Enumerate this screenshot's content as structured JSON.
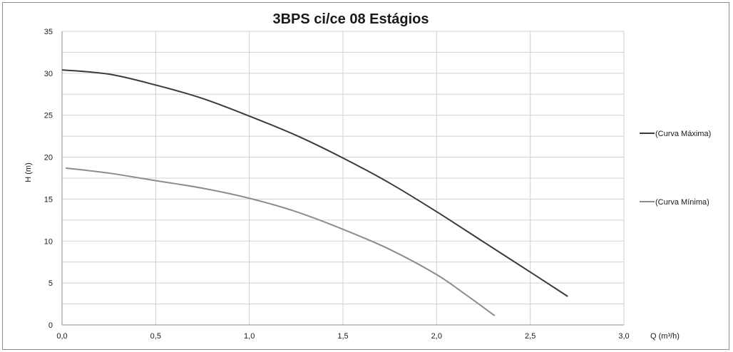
{
  "chart_data": {
    "type": "line",
    "title": "3BPS ci/ce 08 Estágios",
    "xlabel": "Q (m³/h)",
    "ylabel": "H (m)",
    "xlim": [
      0,
      3
    ],
    "ylim": [
      0,
      35
    ],
    "x_ticks": [
      "0,0",
      "0,5",
      "1,0",
      "1,5",
      "2,0",
      "2,5",
      "3,0"
    ],
    "y_ticks": [
      "0",
      "5",
      "10",
      "15",
      "20",
      "25",
      "30",
      "35"
    ],
    "grid": true,
    "legend_position": "right",
    "series": [
      {
        "name": "(Curva Máxima)",
        "color": "#3a3a3a",
        "x": [
          0.0,
          0.25,
          0.5,
          0.75,
          1.0,
          1.25,
          1.5,
          1.75,
          2.0,
          2.25,
          2.5,
          2.7
        ],
        "y": [
          30.4,
          29.9,
          28.6,
          27.0,
          24.9,
          22.6,
          19.9,
          16.9,
          13.5,
          9.9,
          6.3,
          3.4
        ]
      },
      {
        "name": "(Curva Mínima)",
        "color": "#8c8c8c",
        "x": [
          0.02,
          0.25,
          0.5,
          0.75,
          1.0,
          1.25,
          1.5,
          1.75,
          2.0,
          2.15,
          2.31
        ],
        "y": [
          18.7,
          18.1,
          17.2,
          16.3,
          15.1,
          13.5,
          11.4,
          9.0,
          6.0,
          3.7,
          1.1
        ]
      }
    ]
  }
}
